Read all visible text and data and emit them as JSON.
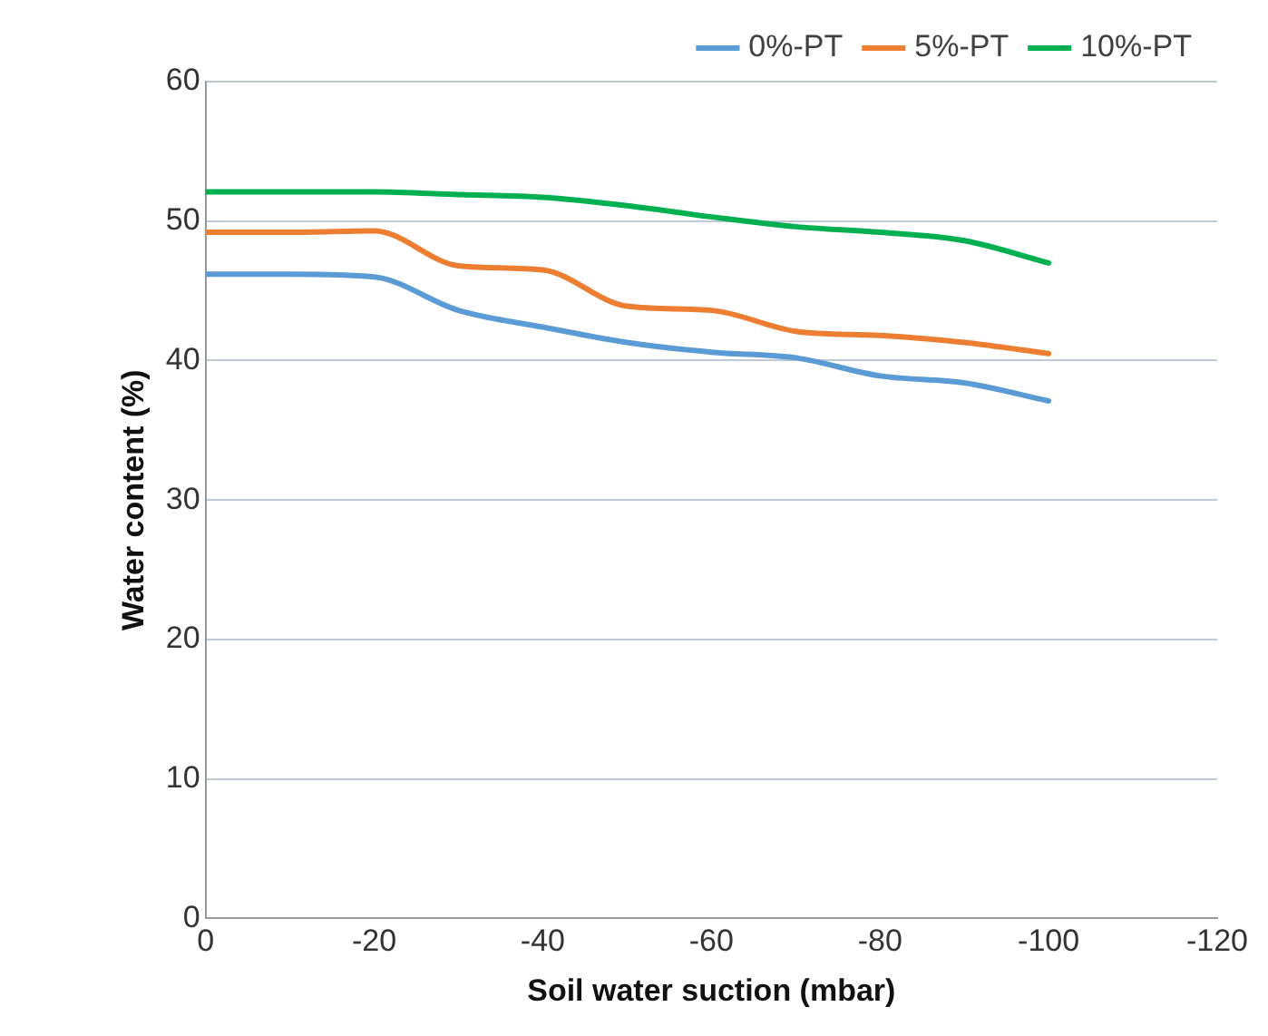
{
  "chart_data": {
    "type": "line",
    "xlabel": "Soil water suction (mbar)",
    "ylabel": "Water content (%)",
    "x": [
      0,
      -10,
      -20,
      -30,
      -40,
      -50,
      -60,
      -70,
      -80,
      -90,
      -100
    ],
    "series": [
      {
        "name": "0%-PT",
        "color": "#5b9bd5",
        "values": [
          46.2,
          46.2,
          46,
          43.6,
          42.4,
          41.3,
          40.6,
          40.2,
          38.9,
          38.4,
          37.1
        ]
      },
      {
        "name": "5%-PT",
        "color": "#ed7d31",
        "values": [
          49.2,
          49.2,
          49.3,
          46.8,
          46.5,
          43.9,
          43.6,
          42.1,
          41.8,
          41.3,
          40.5
        ]
      },
      {
        "name": "10%-PT",
        "color": "#00b050",
        "values": [
          52.1,
          52.1,
          52.1,
          51.9,
          51.7,
          51.1,
          50.3,
          49.6,
          49.2,
          48.6,
          47.0
        ]
      }
    ],
    "xlim": [
      0,
      -120
    ],
    "xticks": [
      0,
      -20,
      -40,
      -60,
      -80,
      -100,
      -120
    ],
    "ylim": [
      0,
      60
    ],
    "yticks": [
      0,
      10,
      20,
      30,
      40,
      50,
      60
    ],
    "grid": "y",
    "legend": "top right",
    "marker": "none",
    "line_style": "solid"
  }
}
